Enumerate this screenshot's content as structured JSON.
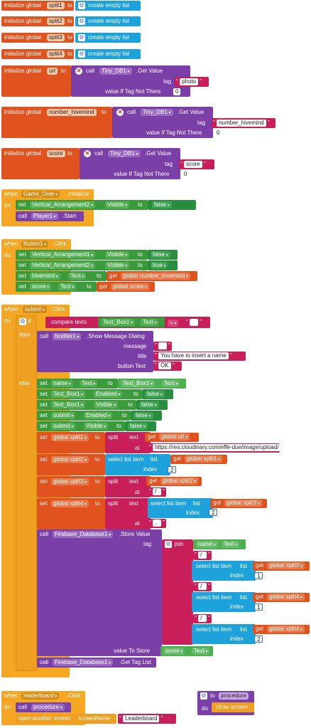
{
  "globals": [
    {
      "kw": "initialize global",
      "name": "split1",
      "to": "to",
      "value": "create empty list"
    },
    {
      "kw": "initialize global",
      "name": "split2",
      "to": "to",
      "value": "create empty list"
    },
    {
      "kw": "initialize global",
      "name": "split3",
      "to": "to",
      "value": "create empty list"
    },
    {
      "kw": "initialize global",
      "name": "split4",
      "to": "to",
      "value": "create empty list"
    }
  ],
  "url_block": {
    "kw": "initialize global",
    "name": "url",
    "to": "to",
    "call": "call",
    "component": "Tiny_DB1",
    "method": ".Get Value",
    "tag_label": "tag",
    "tag_value": "photo",
    "ifnot_label": "value If Tag Not There",
    "ifnot_value": "0"
  },
  "hivemind_block": {
    "kw": "initialize global",
    "name": "number_hivemind",
    "to": "to",
    "call": "call",
    "component": "Tiny_DB1",
    "method": ".Get Value",
    "tag_label": "tag",
    "tag_value": "number_hivemind",
    "ifnot_label": "value If Tag Not There",
    "ifnot_value": "0"
  },
  "score_block": {
    "kw": "initialize global",
    "name": "score",
    "to": "to",
    "call": "call",
    "component": "Tiny_DB1",
    "method": ".Get Value",
    "tag_label": "tag",
    "tag_value": "score",
    "ifnot_label": "value If Tag Not There",
    "ifnot_value": "0"
  },
  "game_over": {
    "when": "when",
    "component": "Game_Over",
    "event": ".Initialize",
    "do": "do",
    "set": "set",
    "set_component": "Vertical_Arrangement2",
    "set_prop": "Visible",
    "to": "to",
    "set_value": "false",
    "call": "call",
    "call_component": "Player1",
    "call_method": ".Start"
  },
  "button1": {
    "when": "when",
    "component": "Button1",
    "event": ".Click",
    "do": "do",
    "rows": [
      {
        "set": "set",
        "component": "Vertical_Arrangement1",
        "prop": "Visible",
        "to": "to",
        "value": "false"
      },
      {
        "set": "set",
        "component": "Vertical_Arrangement2",
        "prop": "Visible",
        "to": "to",
        "value": "true"
      },
      {
        "set": "set",
        "component": "hivemind",
        "prop": "Text",
        "to": "to",
        "get": "get",
        "var": "global number_hivemind"
      },
      {
        "set": "set",
        "component": "score",
        "prop": "Text",
        "to": "to",
        "get": "get",
        "var": "global score"
      }
    ]
  },
  "submit": {
    "when": "when",
    "component": "submit",
    "event": ".Click",
    "do": "do",
    "if": "if",
    "then": "then",
    "else": "else",
    "compare": {
      "label": "compare texts",
      "component": "Text_Box1",
      "prop": "Text",
      "op": "=",
      "value": " "
    },
    "notifier": {
      "call": "call",
      "component": "Notifier1",
      "method": ".Show Message Dialog",
      "message_label": "message",
      "message_value": " ",
      "title_label": "title",
      "title_value": "You have to insert a name",
      "button_label": "button Text",
      "button_value": "OK"
    },
    "else_sets": [
      {
        "set": "set",
        "component": "name",
        "prop": "Text",
        "to": "to",
        "src_component": "Text_Box1",
        "src_prop": "Text"
      },
      {
        "set": "set",
        "component": "Text_Box1",
        "prop": "Enabled",
        "to": "to",
        "value": "false"
      },
      {
        "set": "set",
        "component": "Text_Box1",
        "prop": "Visible",
        "to": "to",
        "value": "false"
      },
      {
        "set": "set",
        "component": "submit",
        "prop": "Enabled",
        "to": "to",
        "value": "false"
      },
      {
        "set": "set",
        "component": "submit",
        "prop": "Visible",
        "to": "to",
        "value": "false"
      }
    ],
    "split1": {
      "set": "set",
      "var": "global split1",
      "to": "to",
      "split": "split",
      "text": "text",
      "get": "get",
      "src": "global url",
      "at": "at",
      "at_value": "https://res.cloudinary.com/effe-due/image/upload/"
    },
    "split2": {
      "set": "set",
      "var": "global split2",
      "to": "to",
      "select": "select list item",
      "list": "list",
      "get": "get",
      "src": "global split1",
      "index": "index",
      "index_value": "2"
    },
    "split3": {
      "set": "set",
      "var": "global split3",
      "to": "to",
      "split": "split",
      "text": "text",
      "get": "get",
      "src": "global split2",
      "at": "at",
      "at_value": "/"
    },
    "split4": {
      "set": "set",
      "var": "global split4",
      "to": "to",
      "split": "split",
      "text": "text",
      "select": "select list item",
      "list": "list",
      "get": "get",
      "src": "global split3",
      "index": "index",
      "index_value": "2",
      "at": "at",
      "at_value": "."
    },
    "store": {
      "call": "call",
      "component": "Firebase_Database1",
      "method": ".Store Value",
      "tag": "tag",
      "join": "join",
      "name_component": "name",
      "name_prop": "Text",
      "sep": "/",
      "selects": [
        {
          "select": "select list item",
          "list": "list",
          "get": "get",
          "src": "global split3",
          "index": "index",
          "index_value": "1"
        },
        {
          "select": "select list item",
          "list": "list",
          "get": "get",
          "src": "global split4",
          "index": "index",
          "index_value": "1"
        },
        {
          "select": "select list item",
          "list": "list",
          "get": "get",
          "src": "global split4",
          "index": "index",
          "index_value": "2"
        }
      ],
      "store_label": "value To Store",
      "store_component": "score",
      "store_prop": "Text"
    },
    "taglist": {
      "call": "call",
      "component": "Firebase_Database1",
      "method": ".Get Tag List"
    }
  },
  "leaderboard": {
    "when": "when",
    "component": "leaderboard",
    "event": ".Click",
    "do": "do",
    "call": "call",
    "proc": "procedure",
    "open": "open another screen",
    "screen_label": "screenName",
    "screen_value": "Leaderboard"
  },
  "procedure_def": {
    "to": "to",
    "name": "procedure",
    "do": "do",
    "body": "close screen"
  }
}
